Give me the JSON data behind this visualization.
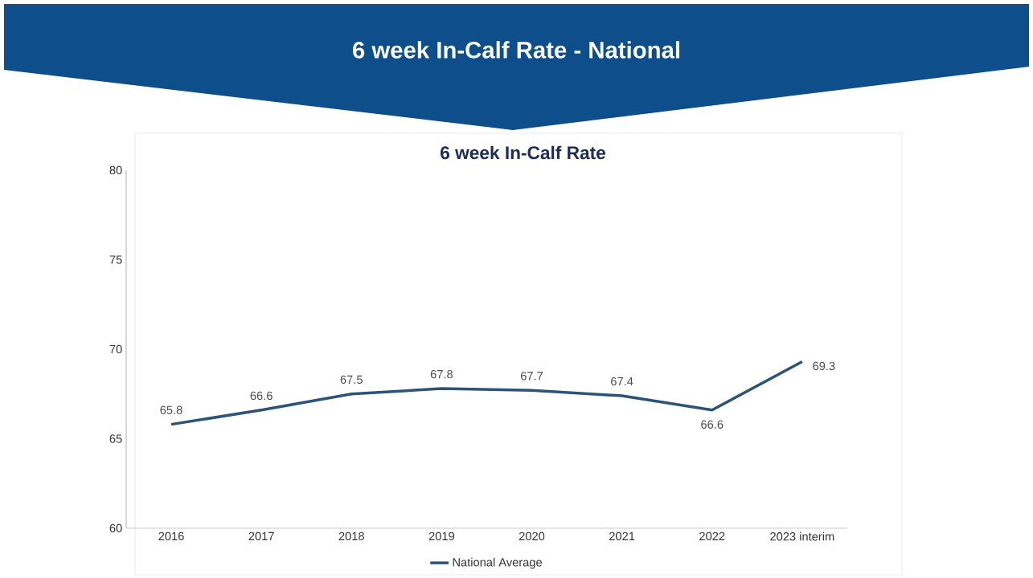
{
  "chart_data": {
    "type": "line",
    "title": "6 week In-Calf Rate - National",
    "subtitle": "6 week In-Calf Rate",
    "categories": [
      "2016",
      "2017",
      "2018",
      "2019",
      "2020",
      "2021",
      "2022",
      "2023 interim"
    ],
    "series": [
      {
        "name": "National Average",
        "color": "#2b5478",
        "values": [
          65.8,
          66.6,
          67.5,
          67.8,
          67.7,
          67.4,
          66.6,
          69.3
        ]
      }
    ],
    "ylim": [
      60,
      80
    ],
    "yticks": [
      60,
      65,
      70,
      75,
      80
    ],
    "grid": false,
    "legend": "bottom",
    "data_labels": true,
    "marker": "none",
    "line_style": "solid"
  }
}
